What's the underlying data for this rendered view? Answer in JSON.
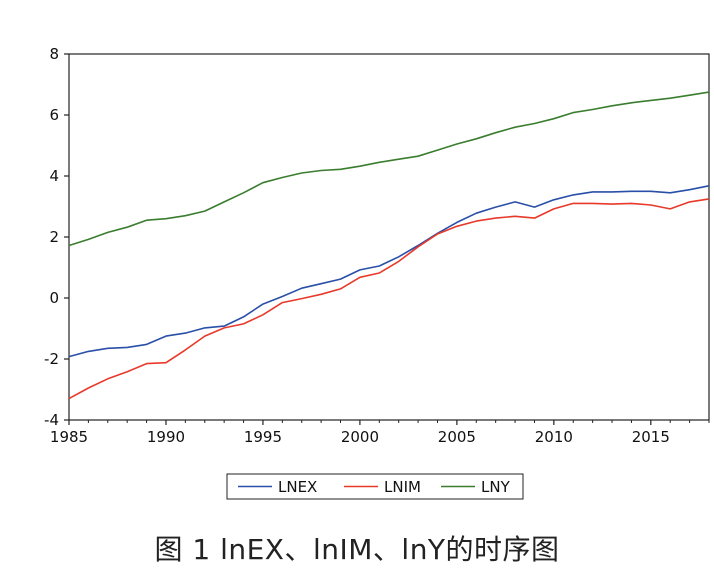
{
  "caption": "图 1 lnEX、lnIM、lnY的时序图",
  "chart_data": {
    "type": "line",
    "xlim": [
      1985,
      2018
    ],
    "ylim": [
      -4,
      8
    ],
    "x_ticks": [
      1985,
      1990,
      1995,
      2000,
      2005,
      2010,
      2015
    ],
    "x_tick_labels": [
      "1985",
      "1990",
      "1995",
      "2000",
      "2005",
      "2010",
      "2015"
    ],
    "y_ticks": [
      -4,
      -2,
      0,
      2,
      4,
      6,
      8
    ],
    "y_tick_labels": [
      "-4",
      "-2",
      "0",
      "2",
      "4",
      "6",
      "8"
    ],
    "grid": false,
    "legend_position": "bottom",
    "series": [
      {
        "name": "LNEX",
        "color": "#2a4fa8",
        "x": [
          1985,
          1986,
          1987,
          1988,
          1989,
          1990,
          1991,
          1992,
          1993,
          1994,
          1995,
          1996,
          1997,
          1998,
          1999,
          2000,
          2001,
          2002,
          2003,
          2004,
          2005,
          2006,
          2007,
          2008,
          2009,
          2010,
          2011,
          2012,
          2013,
          2014,
          2015,
          2016,
          2017,
          2018
        ],
        "y": [
          -1.92,
          -1.75,
          -1.65,
          -1.62,
          -1.52,
          -1.25,
          -1.15,
          -0.98,
          -0.92,
          -0.62,
          -0.2,
          0.05,
          0.32,
          0.47,
          0.62,
          0.92,
          1.05,
          1.35,
          1.72,
          2.12,
          2.48,
          2.78,
          2.98,
          3.15,
          2.98,
          3.22,
          3.38,
          3.48,
          3.48,
          3.5,
          3.5,
          3.45,
          3.55,
          3.68
        ]
      },
      {
        "name": "LNIM",
        "color": "#e8392a",
        "x": [
          1985,
          1986,
          1987,
          1988,
          1989,
          1990,
          1991,
          1992,
          1993,
          1994,
          1995,
          1996,
          1997,
          1998,
          1999,
          2000,
          2001,
          2002,
          2003,
          2004,
          2005,
          2006,
          2007,
          2008,
          2009,
          2010,
          2011,
          2012,
          2013,
          2014,
          2015,
          2016,
          2017,
          2018
        ],
        "y": [
          -3.3,
          -2.95,
          -2.65,
          -2.42,
          -2.15,
          -2.12,
          -1.7,
          -1.25,
          -0.98,
          -0.85,
          -0.55,
          -0.15,
          -0.02,
          0.12,
          0.3,
          0.68,
          0.82,
          1.2,
          1.68,
          2.1,
          2.35,
          2.52,
          2.62,
          2.68,
          2.62,
          2.92,
          3.1,
          3.1,
          3.08,
          3.1,
          3.05,
          2.92,
          3.15,
          3.25
        ]
      },
      {
        "name": "LNY",
        "color": "#3b7d2f",
        "x": [
          1985,
          1986,
          1987,
          1988,
          1989,
          1990,
          1991,
          1992,
          1993,
          1994,
          1995,
          1996,
          1997,
          1998,
          1999,
          2000,
          2001,
          2002,
          2003,
          2004,
          2005,
          2006,
          2007,
          2008,
          2009,
          2010,
          2011,
          2012,
          2013,
          2014,
          2015,
          2016,
          2017,
          2018
        ],
        "y": [
          1.72,
          1.92,
          2.15,
          2.32,
          2.55,
          2.6,
          2.7,
          2.85,
          3.15,
          3.45,
          3.78,
          3.95,
          4.1,
          4.18,
          4.22,
          4.32,
          4.45,
          4.55,
          4.65,
          4.85,
          5.05,
          5.22,
          5.42,
          5.6,
          5.72,
          5.88,
          6.08,
          6.18,
          6.3,
          6.4,
          6.48,
          6.55,
          6.65,
          6.75
        ]
      }
    ]
  }
}
